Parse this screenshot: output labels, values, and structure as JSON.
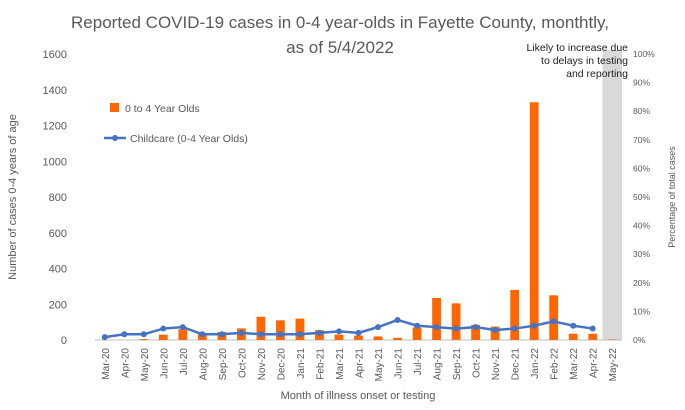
{
  "chart_data": {
    "type": "bar+line",
    "title": "Reported COVID-19 cases in 0-4 year-olds in Fayette County, monthtly, as of 5/4/2022",
    "xlabel": "Month of illness onset or testing",
    "ylabel": "Number of cases 0-4 years of age",
    "y2label": "Percentage of total cases",
    "ylim": [
      0,
      1600
    ],
    "y2lim": [
      0,
      100
    ],
    "yticks": [
      "0",
      "200",
      "400",
      "600",
      "800",
      "1000",
      "1200",
      "1400",
      "1600"
    ],
    "y2ticks": [
      "0%",
      "10%",
      "20%",
      "30%",
      "40%",
      "50%",
      "60%",
      "70%",
      "80%",
      "90%",
      "100%"
    ],
    "categories": [
      "Mar-20",
      "Apr-20",
      "May-20",
      "Jun-20",
      "Jul-20",
      "Aug-20",
      "Sep-20",
      "Oct-20",
      "Nov-20",
      "Dec-20",
      "Jan-21",
      "Feb-21",
      "Mar-21",
      "Apr-21",
      "May-21",
      "Jun-21",
      "Jul-21",
      "Aug-21",
      "Sep-21",
      "Oct-21",
      "Nov-21",
      "Dec-21",
      "Jan-22",
      "Feb-22",
      "Mar-22",
      "Apr-22",
      "May-22"
    ],
    "series": [
      {
        "name": "0 to 4 Year Olds",
        "type": "bar",
        "axis": "left",
        "color": "#FF6600",
        "values": [
          0,
          0,
          5,
          30,
          60,
          40,
          45,
          65,
          130,
          110,
          120,
          55,
          30,
          25,
          20,
          12,
          70,
          235,
          205,
          85,
          75,
          280,
          1330,
          250,
          35,
          35,
          3
        ]
      },
      {
        "name": "Childcare (0-4 Year Olds)",
        "type": "line",
        "axis": "right",
        "color": "#4472C4",
        "values": [
          1,
          2,
          2,
          4,
          4.5,
          2,
          2,
          2.5,
          2,
          2,
          2,
          2.5,
          3,
          2.5,
          4.5,
          7,
          5,
          4.5,
          4,
          4.5,
          3.5,
          4,
          5,
          6.5,
          5,
          4,
          null
        ]
      }
    ],
    "annotation": [
      "Likely to increase due",
      "to delays in testing",
      "and reporting"
    ],
    "shaded_category": "May-22",
    "legend": "top-left"
  }
}
